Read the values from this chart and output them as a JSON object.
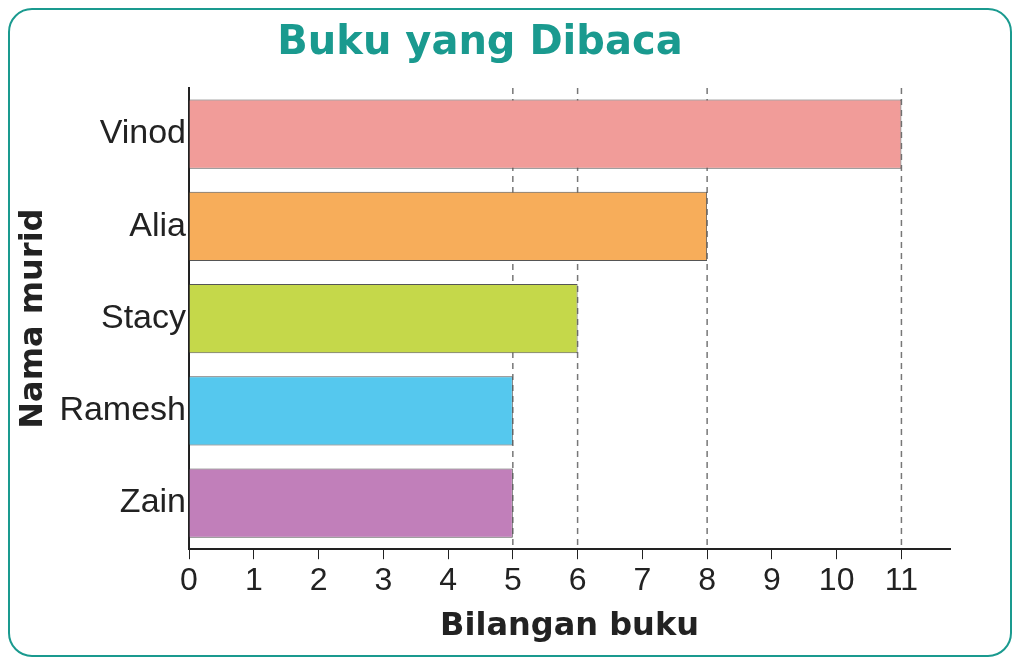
{
  "chart_data": {
    "type": "bar",
    "orientation": "horizontal",
    "title": "Buku yang Dibaca",
    "xlabel": "Bilangan buku",
    "ylabel": "Nama murid",
    "categories": [
      "Vinod",
      "Alia",
      "Stacy",
      "Ramesh",
      "Zain"
    ],
    "values": [
      11,
      8,
      6,
      5,
      5
    ],
    "colors": [
      "#f19c99",
      "#f7ad5a",
      "#c5d84a",
      "#55c8ee",
      "#c17fba"
    ],
    "xlim": [
      0,
      11.75
    ],
    "xticks": [
      0,
      1,
      2,
      3,
      4,
      5,
      6,
      7,
      8,
      9,
      10,
      11
    ],
    "ref_lines": [
      {
        "axis": "x",
        "value": 5,
        "color": "#777777",
        "line_style": "dashed"
      },
      {
        "axis": "x",
        "value": 6,
        "color": "#777777",
        "line_style": "dashed"
      },
      {
        "axis": "x",
        "value": 8,
        "color": "#777777",
        "line_style": "dashed"
      },
      {
        "axis": "x",
        "value": 11,
        "color": "#777777",
        "line_style": "dashed"
      }
    ],
    "grid": false,
    "legend": false
  }
}
